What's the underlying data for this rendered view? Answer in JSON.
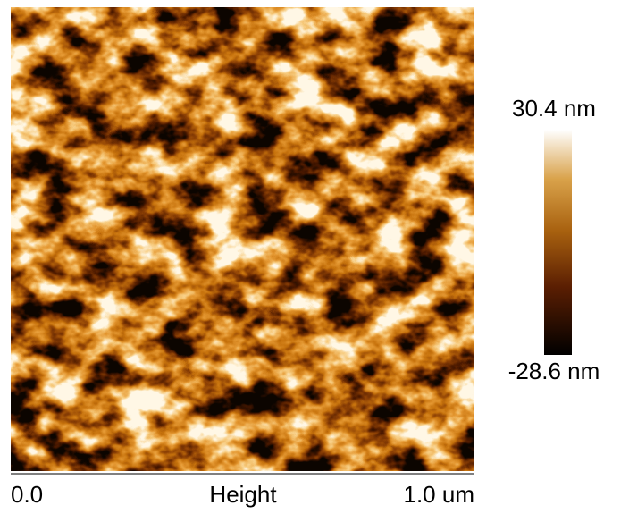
{
  "image": {
    "x_start": "0.0",
    "x_label": "Height",
    "x_end": "1.0 um"
  },
  "colorbar": {
    "max": "30.4 nm",
    "min": "-28.6 nm"
  }
}
